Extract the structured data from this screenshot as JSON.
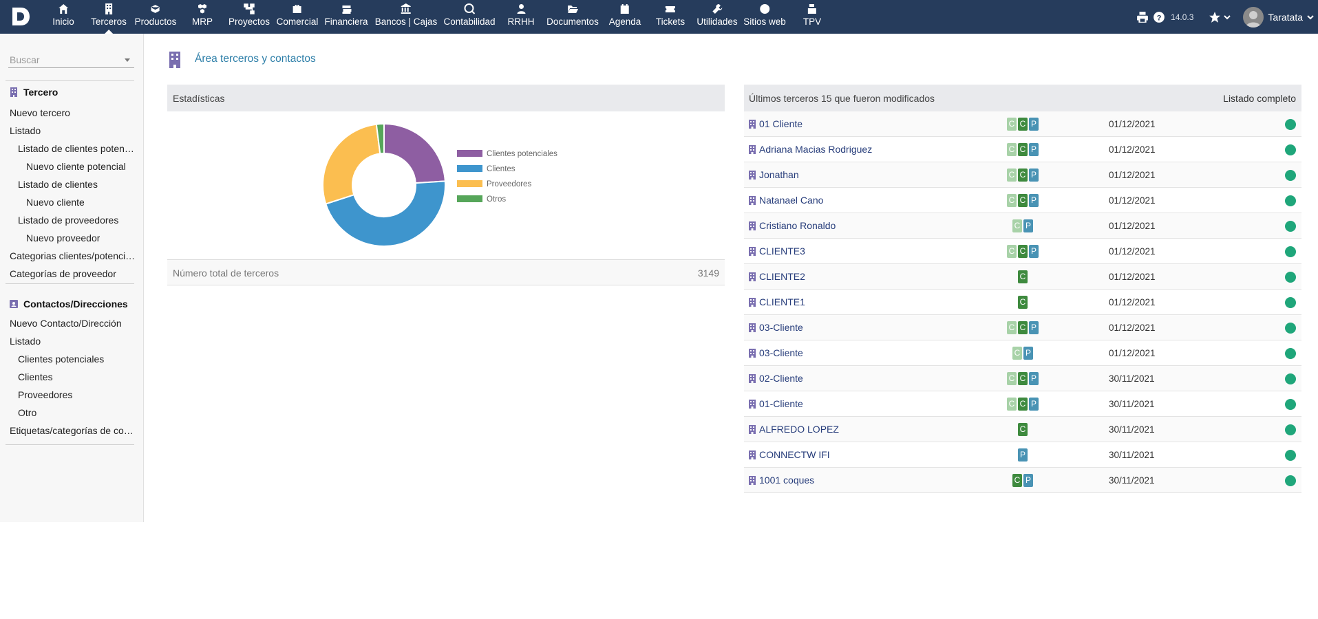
{
  "topbar": {
    "menu": [
      {
        "label": "Inicio",
        "icon": "home-icon"
      },
      {
        "label": "Terceros",
        "icon": "building-icon"
      },
      {
        "label": "Productos",
        "icon": "cube-icon"
      },
      {
        "label": "MRP",
        "icon": "cubes-icon"
      },
      {
        "label": "Proyectos",
        "icon": "sitemap-icon"
      },
      {
        "label": "Comercial",
        "icon": "suitcase-icon"
      },
      {
        "label": "Financiera",
        "icon": "money-icon"
      },
      {
        "label": "Bancos | Cajas",
        "icon": "bank-icon"
      },
      {
        "label": "Contabilidad",
        "icon": "search-dollar-icon"
      },
      {
        "label": "RRHH",
        "icon": "user-tie-icon"
      },
      {
        "label": "Documentos",
        "icon": "folder-open-icon"
      },
      {
        "label": "Agenda",
        "icon": "calendar-icon"
      },
      {
        "label": "Tickets",
        "icon": "ticket-icon"
      },
      {
        "label": "Utilidades",
        "icon": "wrench-icon"
      },
      {
        "label": "Sitios web",
        "icon": "globe-icon"
      },
      {
        "label": "TPV",
        "icon": "cash-register-icon"
      }
    ],
    "version": "14.0.3",
    "user": "Taratata"
  },
  "sidebar": {
    "search_placeholder": "Buscar",
    "thirdparty_head": "Tercero",
    "thirdparty_links": [
      "Nuevo tercero",
      "Listado",
      "Listado de clientes potenciales",
      "Nuevo cliente potencial",
      "Listado de clientes",
      "Nuevo cliente",
      "Listado de proveedores",
      "Nuevo proveedor",
      "Categorias clientes/potenciales",
      "Categorías de proveedor"
    ],
    "contacts_head": "Contactos/Direcciones",
    "contacts_links": [
      "Nuevo Contacto/Dirección",
      "Listado",
      "Clientes potenciales",
      "Clientes",
      "Proveedores",
      "Otro",
      "Etiquetas/categorías de contactos"
    ]
  },
  "main": {
    "title": "Área terceros y contactos",
    "stats": {
      "header": "Estadísticas",
      "total_label": "Número total de terceros",
      "total_value": "3149"
    },
    "latest": {
      "header": "Últimos terceros 15 que fueron modificados",
      "full_list": "Listado completo",
      "rows": [
        {
          "name": "01 Cliente",
          "badges": [
            "C",
            "C",
            "P"
          ],
          "date": "01/12/2021"
        },
        {
          "name": "Adriana Macias Rodriguez",
          "badges": [
            "C",
            "C",
            "P"
          ],
          "date": "01/12/2021"
        },
        {
          "name": "Jonathan",
          "badges": [
            "C",
            "C",
            "P"
          ],
          "date": "01/12/2021"
        },
        {
          "name": "Natanael Cano",
          "badges": [
            "C",
            "C",
            "P"
          ],
          "date": "01/12/2021"
        },
        {
          "name": "Cristiano Ronaldo",
          "badges": [
            "C",
            "P"
          ],
          "date": "01/12/2021"
        },
        {
          "name": "CLIENTE3",
          "badges": [
            "C",
            "C",
            "P"
          ],
          "date": "01/12/2021"
        },
        {
          "name": "CLIENTE2",
          "badges": [
            "C"
          ],
          "date": "01/12/2021"
        },
        {
          "name": "CLIENTE1",
          "badges": [
            "C"
          ],
          "date": "01/12/2021"
        },
        {
          "name": "03-Cliente",
          "badges": [
            "C",
            "C",
            "P"
          ],
          "date": "01/12/2021"
        },
        {
          "name": "03-Cliente",
          "badges": [
            "C",
            "P"
          ],
          "date": "01/12/2021"
        },
        {
          "name": "02-Cliente",
          "badges": [
            "C",
            "C",
            "P"
          ],
          "date": "30/11/2021"
        },
        {
          "name": "01-Cliente",
          "badges": [
            "C",
            "C",
            "P"
          ],
          "date": "30/11/2021"
        },
        {
          "name": "ALFREDO LOPEZ",
          "badges": [
            "C"
          ],
          "date": "30/11/2021"
        },
        {
          "name": "CONNECTW IFI",
          "badges": [
            "P"
          ],
          "date": "30/11/2021"
        },
        {
          "name": "1001 coques",
          "badges": [
            "C",
            "P"
          ],
          "date": "30/11/2021"
        }
      ],
      "badge_kinds": [
        [
          "cp",
          "c",
          "p"
        ],
        [
          "cp",
          "c",
          "p"
        ],
        [
          "cp",
          "c",
          "p"
        ],
        [
          "cp",
          "c",
          "p"
        ],
        [
          "cp",
          "p"
        ],
        [
          "cp",
          "c",
          "p"
        ],
        [
          "c"
        ],
        [
          "c"
        ],
        [
          "cp",
          "c",
          "p"
        ],
        [
          "cp",
          "p"
        ],
        [
          "cp",
          "c",
          "p"
        ],
        [
          "cp",
          "c",
          "p"
        ],
        [
          "c"
        ],
        [
          "p"
        ],
        [
          "c",
          "p"
        ]
      ]
    }
  },
  "colors": {
    "topbar": "#263c5c",
    "prospect": "#8e5ea2",
    "customer": "#3e95cd",
    "supplier": "#fbbe50",
    "other": "#56a65a",
    "status_green": "#1fa67a"
  },
  "chart_data": {
    "type": "pie",
    "categories": [
      "Clientes potenciales",
      "Clientes",
      "Proveedores",
      "Otros"
    ],
    "values": [
      24,
      46,
      28,
      2
    ],
    "units": "approximate % of total",
    "legend_position": "right"
  }
}
